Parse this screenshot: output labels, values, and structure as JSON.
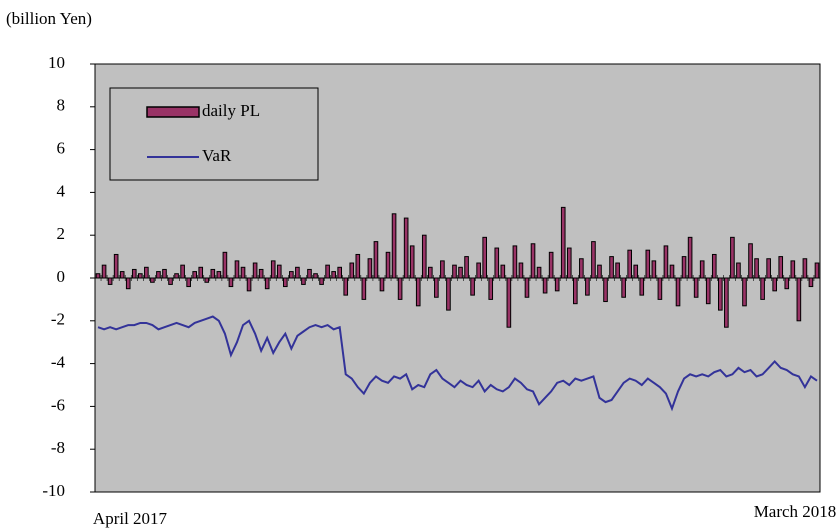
{
  "chart_data": {
    "type": "bar_line",
    "y_axis_label": "(billion Yen)",
    "categories": [
      "April 2017",
      null,
      null,
      null,
      null,
      null,
      null,
      null,
      null,
      null,
      null,
      null,
      null,
      null,
      null,
      null,
      null,
      null,
      null,
      null,
      null,
      null,
      null,
      null,
      null,
      null,
      null,
      null,
      null,
      null,
      null,
      null,
      null,
      null,
      null,
      null,
      null,
      null,
      null,
      null,
      null,
      null,
      null,
      null,
      null,
      null,
      null,
      null,
      null,
      null,
      null,
      null,
      null,
      null,
      null,
      null,
      null,
      null,
      null,
      null,
      null,
      null,
      null,
      null,
      null,
      null,
      null,
      null,
      null,
      null,
      null,
      null,
      null,
      null,
      null,
      null,
      null,
      null,
      null,
      null,
      null,
      null,
      null,
      null,
      null,
      null,
      null,
      null,
      null,
      null,
      null,
      null,
      null,
      null,
      null,
      null,
      null,
      null,
      null,
      null,
      null,
      null,
      null,
      null,
      null,
      null,
      null,
      null,
      null,
      null,
      null,
      null,
      null,
      null,
      null,
      null,
      null,
      null,
      null,
      "March 2018"
    ],
    "series": [
      {
        "name": "daily PL",
        "kind": "bar",
        "color": "#993366",
        "values": [
          0.2,
          0.6,
          -0.3,
          1.1,
          0.3,
          -0.5,
          0.4,
          0.2,
          0.5,
          -0.2,
          0.3,
          0.4,
          -0.3,
          0.2,
          0.6,
          -0.4,
          0.3,
          0.5,
          -0.2,
          0.4,
          0.3,
          1.2,
          -0.4,
          0.8,
          0.5,
          -0.6,
          0.7,
          0.4,
          -0.5,
          0.8,
          0.6,
          -0.4,
          0.3,
          0.5,
          -0.3,
          0.4,
          0.2,
          -0.3,
          0.6,
          0.3,
          0.5,
          -0.8,
          0.7,
          1.1,
          -1.0,
          0.9,
          1.7,
          -0.6,
          1.2,
          3.0,
          -1.0,
          2.8,
          1.5,
          -1.3,
          2.0,
          0.5,
          -0.9,
          0.8,
          -1.5,
          0.6,
          0.5,
          1.0,
          -0.8,
          0.7,
          1.9,
          -1.0,
          1.4,
          0.6,
          -2.3,
          1.5,
          0.7,
          -0.9,
          1.6,
          0.5,
          -0.7,
          1.2,
          -0.6,
          3.3,
          1.4,
          -1.2,
          0.9,
          -0.8,
          1.7,
          0.6,
          -1.1,
          1.0,
          0.7,
          -0.9,
          1.3,
          0.6,
          -0.8,
          1.3,
          0.8,
          -1.0,
          1.5,
          0.6,
          -1.3,
          1.0,
          1.9,
          -0.9,
          0.8,
          -1.2,
          1.1,
          -1.5,
          -2.3,
          1.9,
          0.7,
          -1.3,
          1.6,
          0.9,
          -1.0,
          0.9,
          -0.6,
          1.0,
          -0.5,
          0.8,
          -2.0,
          0.9,
          -0.4,
          0.7
        ]
      },
      {
        "name": "VaR",
        "kind": "line",
        "color": "#333399",
        "values": [
          -2.3,
          -2.4,
          -2.3,
          -2.4,
          -2.3,
          -2.2,
          -2.2,
          -2.1,
          -2.1,
          -2.2,
          -2.4,
          -2.3,
          -2.2,
          -2.1,
          -2.2,
          -2.3,
          -2.1,
          -2.0,
          -1.9,
          -1.8,
          -2.0,
          -2.6,
          -3.6,
          -3.0,
          -2.2,
          -2.0,
          -2.6,
          -3.4,
          -2.8,
          -3.5,
          -3.0,
          -2.6,
          -3.3,
          -2.7,
          -2.5,
          -2.3,
          -2.2,
          -2.3,
          -2.2,
          -2.4,
          -2.3,
          -4.5,
          -4.7,
          -5.1,
          -5.4,
          -4.9,
          -4.6,
          -4.8,
          -4.9,
          -4.6,
          -4.7,
          -4.5,
          -5.2,
          -5.0,
          -5.1,
          -4.5,
          -4.3,
          -4.7,
          -4.9,
          -5.1,
          -4.8,
          -5.0,
          -5.1,
          -4.8,
          -5.3,
          -5.0,
          -5.2,
          -5.3,
          -5.1,
          -4.7,
          -4.9,
          -5.2,
          -5.3,
          -5.9,
          -5.6,
          -5.3,
          -4.9,
          -4.8,
          -5.0,
          -4.7,
          -4.8,
          -4.7,
          -4.6,
          -5.6,
          -5.8,
          -5.7,
          -5.3,
          -4.9,
          -4.7,
          -4.8,
          -5.0,
          -4.7,
          -4.9,
          -5.1,
          -5.4,
          -6.1,
          -5.3,
          -4.7,
          -4.5,
          -4.6,
          -4.5,
          -4.6,
          -4.4,
          -4.3,
          -4.6,
          -4.5,
          -4.2,
          -4.4,
          -4.3,
          -4.6,
          -4.5,
          -4.2,
          -3.9,
          -4.2,
          -4.3,
          -4.5,
          -4.6,
          -5.1,
          -4.6,
          -4.8
        ]
      }
    ],
    "ylim": [
      -10,
      10
    ],
    "yticks": [
      -10,
      -8,
      -6,
      -4,
      -2,
      0,
      2,
      4,
      6,
      8,
      10
    ],
    "background": "#c0c0c0",
    "grid": false,
    "legend": "upper left"
  }
}
